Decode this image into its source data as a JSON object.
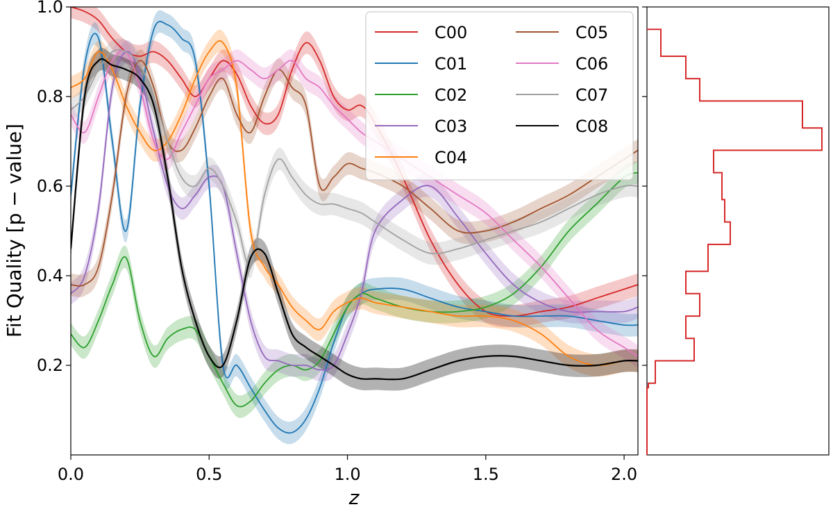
{
  "chart_data": [
    {
      "type": "line",
      "title": "",
      "xlabel": "z",
      "ylabel": "Fit Quality [p − value]",
      "xlim": [
        0.0,
        2.05
      ],
      "ylim": [
        0.0,
        1.0
      ],
      "x_ticks": [
        "0.0",
        "0.5",
        "1.0",
        "1.5",
        "2.0"
      ],
      "y_ticks": [
        "0.2",
        "0.4",
        "0.6",
        "0.8",
        "1.0"
      ],
      "legend_position": "top-right",
      "band_halfwidth": 0.025,
      "x": [
        0.0,
        0.05,
        0.1,
        0.15,
        0.2,
        0.25,
        0.3,
        0.35,
        0.4,
        0.45,
        0.5,
        0.55,
        0.6,
        0.65,
        0.7,
        0.75,
        0.8,
        0.85,
        0.9,
        0.95,
        1.0,
        1.05,
        1.1,
        1.2,
        1.3,
        1.4,
        1.5,
        1.6,
        1.7,
        1.8,
        1.9,
        2.0,
        2.05
      ],
      "series": [
        {
          "name": "C00",
          "color": "#d62728",
          "values": [
            1.0,
            0.99,
            0.97,
            0.93,
            0.9,
            0.89,
            0.9,
            0.88,
            0.84,
            0.8,
            0.84,
            0.88,
            0.85,
            0.78,
            0.74,
            0.76,
            0.86,
            0.92,
            0.88,
            0.8,
            0.77,
            0.78,
            0.74,
            0.62,
            0.48,
            0.38,
            0.32,
            0.31,
            0.32,
            0.33,
            0.35,
            0.37,
            0.38
          ]
        },
        {
          "name": "C01",
          "color": "#1f77b4",
          "values": [
            0.58,
            0.87,
            0.93,
            0.7,
            0.5,
            0.78,
            0.95,
            0.96,
            0.93,
            0.88,
            0.6,
            0.2,
            0.2,
            0.15,
            0.1,
            0.06,
            0.05,
            0.08,
            0.15,
            0.25,
            0.33,
            0.36,
            0.37,
            0.37,
            0.35,
            0.33,
            0.32,
            0.31,
            0.31,
            0.31,
            0.3,
            0.29,
            0.29
          ]
        },
        {
          "name": "C02",
          "color": "#2ca02c",
          "values": [
            0.27,
            0.24,
            0.3,
            0.38,
            0.44,
            0.3,
            0.22,
            0.26,
            0.28,
            0.28,
            0.22,
            0.16,
            0.11,
            0.12,
            0.16,
            0.19,
            0.2,
            0.19,
            0.21,
            0.27,
            0.33,
            0.36,
            0.35,
            0.33,
            0.32,
            0.32,
            0.33,
            0.36,
            0.42,
            0.5,
            0.56,
            0.62,
            0.63
          ]
        },
        {
          "name": "C03",
          "color": "#9467bd",
          "values": [
            0.36,
            0.4,
            0.55,
            0.82,
            0.9,
            0.85,
            0.72,
            0.6,
            0.55,
            0.58,
            0.62,
            0.6,
            0.45,
            0.3,
            0.22,
            0.21,
            0.2,
            0.2,
            0.19,
            0.2,
            0.27,
            0.36,
            0.5,
            0.57,
            0.6,
            0.53,
            0.45,
            0.38,
            0.34,
            0.32,
            0.32,
            0.32,
            0.33
          ]
        },
        {
          "name": "C04",
          "color": "#ff7f0e",
          "values": [
            0.82,
            0.84,
            0.9,
            0.86,
            0.78,
            0.72,
            0.68,
            0.7,
            0.76,
            0.84,
            0.9,
            0.92,
            0.82,
            0.5,
            0.42,
            0.38,
            0.33,
            0.3,
            0.28,
            0.32,
            0.34,
            0.35,
            0.34,
            0.33,
            0.32,
            0.31,
            0.31,
            0.3,
            0.27,
            0.22,
            0.2,
            0.21,
            0.21
          ]
        },
        {
          "name": "C05",
          "color": "#a0522d",
          "values": [
            0.38,
            0.38,
            0.42,
            0.58,
            0.8,
            0.88,
            0.82,
            0.7,
            0.68,
            0.73,
            0.8,
            0.84,
            0.76,
            0.72,
            0.8,
            0.86,
            0.82,
            0.78,
            0.6,
            0.62,
            0.65,
            0.64,
            0.63,
            0.6,
            0.55,
            0.5,
            0.5,
            0.52,
            0.55,
            0.58,
            0.62,
            0.66,
            0.68
          ]
        },
        {
          "name": "C06",
          "color": "#e377c2",
          "values": [
            0.76,
            0.72,
            0.8,
            0.88,
            0.9,
            0.82,
            0.7,
            0.66,
            0.72,
            0.78,
            0.84,
            0.86,
            0.88,
            0.86,
            0.84,
            0.86,
            0.88,
            0.84,
            0.82,
            0.78,
            0.75,
            0.72,
            0.7,
            0.66,
            0.62,
            0.58,
            0.54,
            0.48,
            0.42,
            0.35,
            0.28,
            0.24,
            0.22
          ]
        },
        {
          "name": "C07",
          "color": "#a0a0a0",
          "values": [
            0.77,
            0.8,
            0.86,
            0.9,
            0.9,
            0.87,
            0.8,
            0.7,
            0.62,
            0.6,
            0.64,
            0.6,
            0.52,
            0.42,
            0.58,
            0.66,
            0.62,
            0.58,
            0.56,
            0.56,
            0.55,
            0.54,
            0.52,
            0.48,
            0.45,
            0.46,
            0.48,
            0.5,
            0.52,
            0.55,
            0.58,
            0.6,
            0.6
          ]
        },
        {
          "name": "C08",
          "color": "#000000",
          "values": [
            0.46,
            0.8,
            0.88,
            0.87,
            0.86,
            0.84,
            0.78,
            0.62,
            0.42,
            0.3,
            0.22,
            0.2,
            0.3,
            0.44,
            0.45,
            0.36,
            0.27,
            0.24,
            0.22,
            0.2,
            0.18,
            0.17,
            0.17,
            0.17,
            0.19,
            0.21,
            0.22,
            0.22,
            0.21,
            0.2,
            0.2,
            0.21,
            0.21
          ]
        }
      ]
    },
    {
      "type": "histogram",
      "orientation": "horizontal",
      "color": "#d62728",
      "bin_edges": [
        0.15,
        0.16,
        0.21,
        0.26,
        0.31,
        0.36,
        0.41,
        0.47,
        0.52,
        0.57,
        0.63,
        0.68,
        0.73,
        0.79,
        0.84,
        0.89,
        0.95
      ],
      "counts": [
        0.5,
        3,
        17,
        14,
        19,
        14,
        22,
        30,
        28,
        27,
        24,
        63,
        56,
        19,
        14,
        5
      ]
    }
  ]
}
